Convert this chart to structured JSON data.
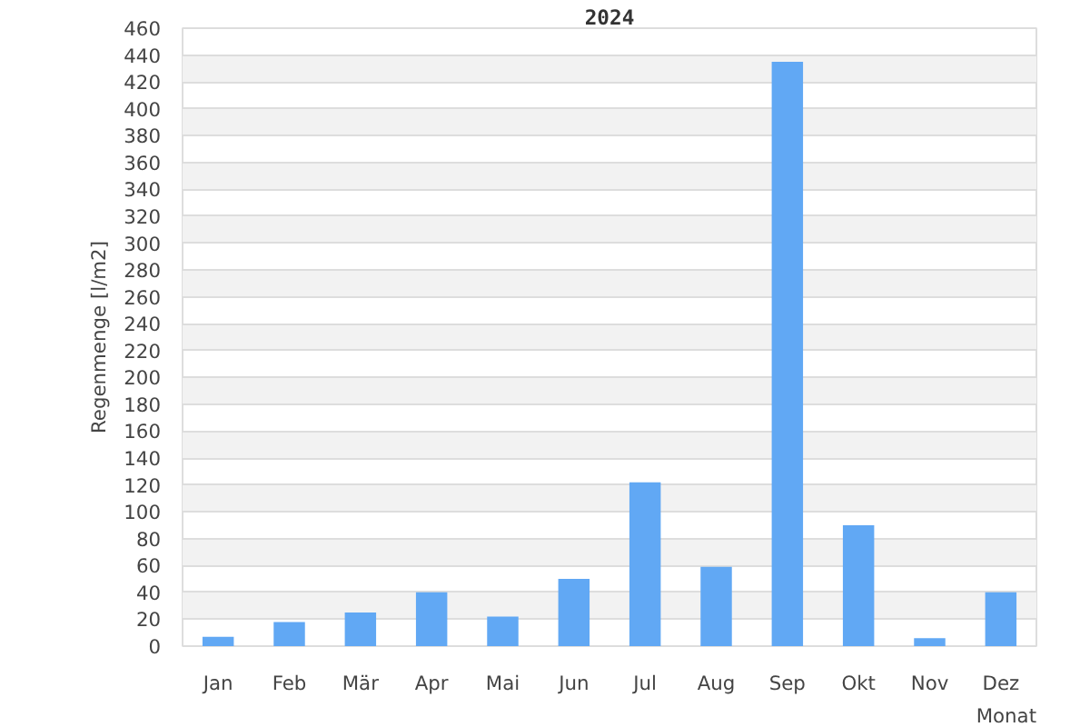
{
  "chart_data": {
    "type": "bar",
    "title": "2024",
    "xlabel": "Monat",
    "ylabel": "Regenmenge [l/m2]",
    "categories": [
      "Jan",
      "Feb",
      "Mär",
      "Apr",
      "Mai",
      "Jun",
      "Jul",
      "Aug",
      "Sep",
      "Okt",
      "Nov",
      "Dez"
    ],
    "values": [
      7,
      18,
      25,
      40,
      22,
      50,
      122,
      59,
      435,
      90,
      6,
      40
    ],
    "color": "#61a8f4",
    "ylim": [
      0,
      460
    ],
    "yticks": [
      0,
      20,
      40,
      60,
      80,
      100,
      120,
      140,
      160,
      180,
      200,
      220,
      240,
      260,
      280,
      300,
      320,
      340,
      360,
      380,
      400,
      420,
      440,
      460
    ],
    "grid": "y"
  }
}
